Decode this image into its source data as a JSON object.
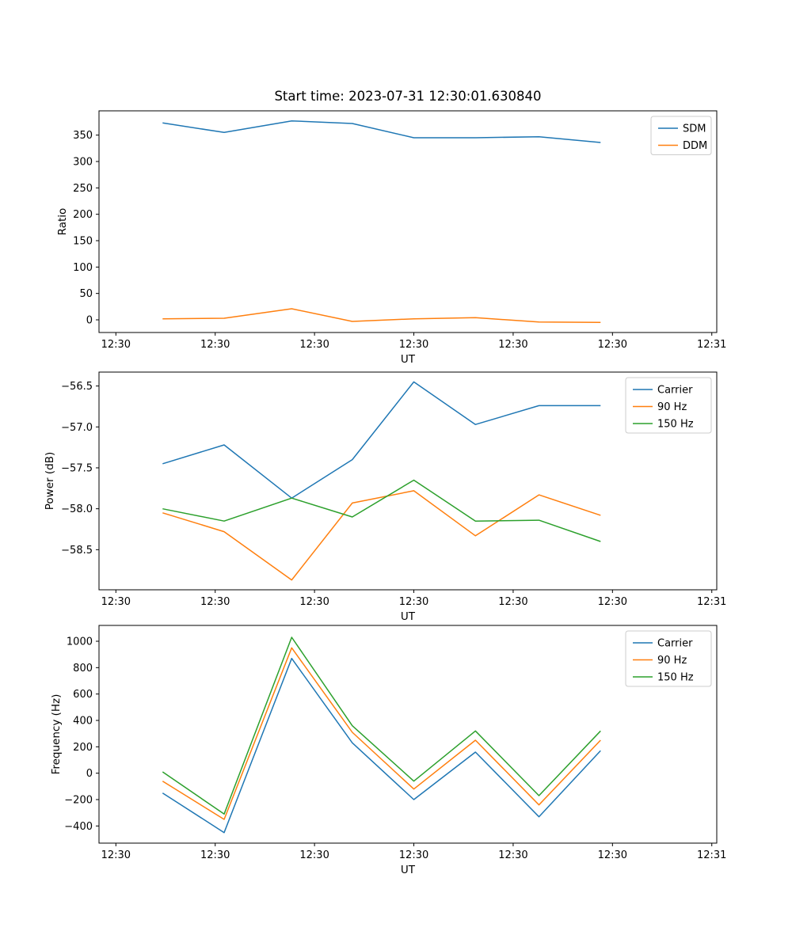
{
  "figure": {
    "title": "Start time: 2023-07-31 12:30:01.630840"
  },
  "colors": {
    "C0": "#1f77b4",
    "C1": "#ff7f0e",
    "C2": "#2ca02c",
    "legend_edge": "#cccccc",
    "axes": "#000000"
  },
  "chart_data": [
    {
      "type": "line",
      "title": "Start time: 2023-07-31 12:30:01.630840",
      "xlabel": "UT",
      "ylabel": "Ratio",
      "grid": false,
      "x_seconds_after_12_30_00": [
        4.7,
        10.9,
        17.7,
        23.8,
        30.0,
        36.2,
        42.6,
        48.8
      ],
      "xlim_seconds": [
        -1.7,
        60.5
      ],
      "xtick_seconds": [
        0,
        10,
        20,
        30,
        40,
        50,
        60
      ],
      "xtick_labels": [
        "12:30",
        "12:30",
        "12:30",
        "12:30",
        "12:30",
        "12:30",
        "12:31"
      ],
      "ylim": [
        -24,
        396
      ],
      "ytick_values": [
        0,
        50,
        100,
        150,
        200,
        250,
        300,
        350
      ],
      "ytick_labels": [
        "0",
        "50",
        "100",
        "150",
        "200",
        "250",
        "300",
        "350"
      ],
      "legend": {
        "position": "upper right",
        "entries": [
          "SDM",
          "DDM"
        ]
      },
      "series": [
        {
          "name": "SDM",
          "color": "#1f77b4",
          "values": [
            373,
            355,
            377,
            372,
            345,
            345,
            347,
            336
          ]
        },
        {
          "name": "DDM",
          "color": "#ff7f0e",
          "values": [
            2,
            3,
            21,
            -3,
            2,
            4,
            -4,
            -5
          ]
        }
      ]
    },
    {
      "type": "line",
      "title": "",
      "xlabel": "UT",
      "ylabel": "Power (dB)",
      "grid": false,
      "x_seconds_after_12_30_00": [
        4.7,
        10.9,
        17.7,
        23.8,
        30.0,
        36.2,
        42.6,
        48.8
      ],
      "xlim_seconds": [
        -1.7,
        60.5
      ],
      "xtick_seconds": [
        0,
        10,
        20,
        30,
        40,
        50,
        60
      ],
      "xtick_labels": [
        "12:30",
        "12:30",
        "12:30",
        "12:30",
        "12:30",
        "12:30",
        "12:31"
      ],
      "ylim": [
        -58.99,
        -56.33
      ],
      "ytick_values": [
        -58.5,
        -58.0,
        -57.5,
        -57.0,
        -56.5
      ],
      "ytick_labels": [
        "−58.5",
        "−58.0",
        "−57.5",
        "−57.0",
        "−56.5"
      ],
      "legend": {
        "position": "upper right",
        "entries": [
          "Carrier",
          "90 Hz",
          "150 Hz"
        ]
      },
      "series": [
        {
          "name": "Carrier",
          "color": "#1f77b4",
          "values": [
            -57.45,
            -57.22,
            -57.87,
            -57.4,
            -56.45,
            -56.97,
            -56.74,
            -56.74
          ]
        },
        {
          "name": "90 Hz",
          "color": "#ff7f0e",
          "values": [
            -58.05,
            -58.28,
            -58.87,
            -57.93,
            -57.78,
            -58.33,
            -57.83,
            -58.08
          ]
        },
        {
          "name": "150 Hz",
          "color": "#2ca02c",
          "values": [
            -58.0,
            -58.15,
            -57.87,
            -58.1,
            -57.65,
            -58.15,
            -58.14,
            -58.4
          ]
        }
      ]
    },
    {
      "type": "line",
      "title": "",
      "xlabel": "UT",
      "ylabel": "Frequency (Hz)",
      "grid": false,
      "x_seconds_after_12_30_00": [
        4.7,
        10.9,
        17.7,
        23.8,
        30.0,
        36.2,
        42.6,
        48.8
      ],
      "xlim_seconds": [
        -1.7,
        60.5
      ],
      "xtick_seconds": [
        0,
        10,
        20,
        30,
        40,
        50,
        60
      ],
      "xtick_labels": [
        "12:30",
        "12:30",
        "12:30",
        "12:30",
        "12:30",
        "12:30",
        "12:31"
      ],
      "ylim": [
        -530,
        1120
      ],
      "ytick_values": [
        -400,
        -200,
        0,
        200,
        400,
        600,
        800,
        1000
      ],
      "ytick_labels": [
        "−400",
        "−200",
        "0",
        "200",
        "400",
        "600",
        "800",
        "1000"
      ],
      "legend": {
        "position": "upper right",
        "entries": [
          "Carrier",
          "90 Hz",
          "150 Hz"
        ]
      },
      "series": [
        {
          "name": "Carrier",
          "color": "#1f77b4",
          "values": [
            -150,
            -450,
            870,
            230,
            -200,
            160,
            -330,
            170
          ]
        },
        {
          "name": "90 Hz",
          "color": "#ff7f0e",
          "values": [
            -60,
            -350,
            950,
            310,
            -120,
            250,
            -240,
            250
          ]
        },
        {
          "name": "150 Hz",
          "color": "#2ca02c",
          "values": [
            10,
            -310,
            1030,
            360,
            -60,
            320,
            -170,
            320
          ]
        }
      ]
    }
  ]
}
